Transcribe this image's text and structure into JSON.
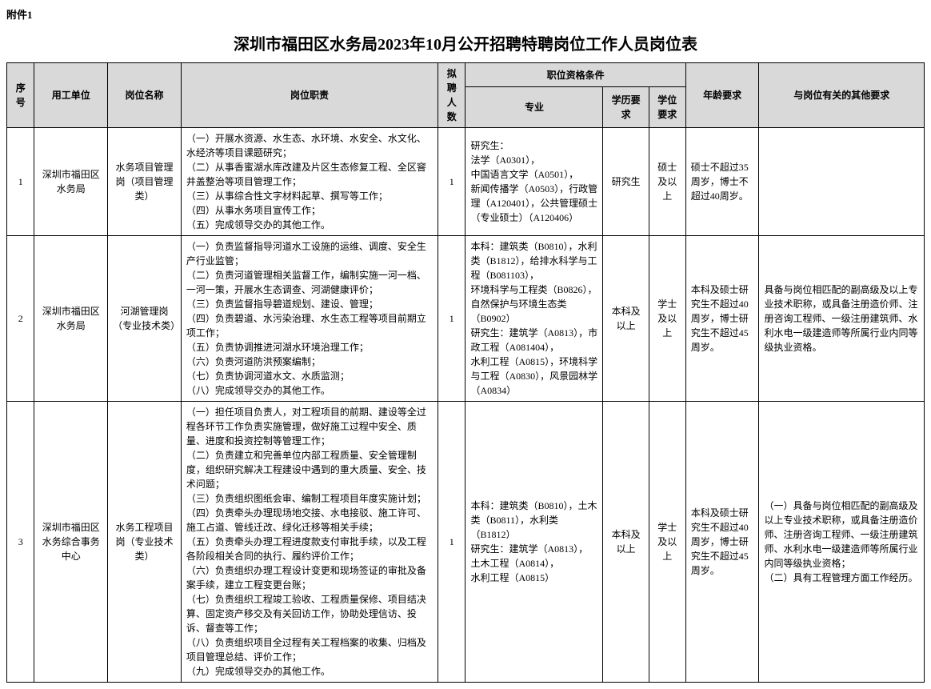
{
  "attachment_label": "附件1",
  "title": "深圳市福田区水务局2023年10月公开招聘特聘岗位工作人员岗位表",
  "headers": {
    "seq": "序号",
    "unit": "用工单位",
    "position": "岗位名称",
    "duty": "岗位职责",
    "count": "拟聘人数",
    "qualification_group": "职位资格条件",
    "major": "专业",
    "education": "学历要求",
    "degree": "学位要求",
    "age": "年龄要求",
    "other": "与岗位有关的其他要求"
  },
  "rows": [
    {
      "seq": "1",
      "unit": "深圳市福田区水务局",
      "position": "水务项目管理岗（项目管理类）",
      "duty": "（一）开展水资源、水生态、水环境、水安全、水文化、水经济等项目课题研究；\n（二）从事香蜜湖水库改建及片区生态修复工程、全区窨井盖整治等项目管理工作；\n（三）从事综合性文字材料起草、撰写等工作；\n（四）从事水务项目宣传工作；\n（五）完成领导交办的其他工作。",
      "count": "1",
      "major": "研究生：\n法学（A0301），\n中国语言文学（A0501），\n新闻传播学（A0503），行政管理（A120401），公共管理硕士（专业硕士）（A120406）",
      "education": "研究生",
      "degree": "硕士及以上",
      "age": "硕士不超过35周岁，博士不超过40周岁。",
      "other": ""
    },
    {
      "seq": "2",
      "unit": "深圳市福田区水务局",
      "position": "河湖管理岗（专业技术类）",
      "duty": "（一）负责监督指导河道水工设施的运维、调度、安全生产行业监管；\n（二）负责河道管理相关监督工作，编制实施一河一档、一河一策，开展水生态调查、河湖健康评价；\n（三）负责监督指导碧道规划、建设、管理；\n（四）负责碧道、水污染治理、水生态工程等项目前期立项工作；\n（五）负责协调推进河湖水环境治理工作；\n（六）负责河道防洪预案编制；\n（七）负责协调河道水文、水质监测；\n（八）完成领导交办的其他工作。",
      "count": "1",
      "major": "本科：建筑类（B0810），水利类（B1812），给排水科学与工程（B081103），\n环境科学与工程类（B0826），\n自然保护与环境生态类（B0902）\n研究生：建筑学（A0813），市政工程（A081404），\n水利工程（A0815），环境科学与工程（A0830），风景园林学（A0834）",
      "education": "本科及以上",
      "degree": "学士及以上",
      "age": "本科及硕士研究生不超过40周岁，博士研究生不超过45周岁。",
      "other": "具备与岗位相匹配的副高级及以上专业技术职称，或具备注册造价师、注册咨询工程师、一级注册建筑师、水利水电一级建造师等所属行业内同等级执业资格。"
    },
    {
      "seq": "3",
      "unit": "深圳市福田区水务综合事务中心",
      "position": "水务工程项目岗（专业技术类）",
      "duty": "（一）担任项目负责人，对工程项目的前期、建设等全过程各环节工作负责实施管理，做好施工过程中安全、质量、进度和投资控制等管理工作；\n（二）负责建立和完善单位内部工程质量、安全管理制度，组织研究解决工程建设中遇到的重大质量、安全、技术问题；\n（三）负责组织图纸会审、编制工程项目年度实施计划；\n（四）负责牵头办理现场地交接、水电接驳、施工许可、施工占道、管线迁改、绿化迁移等相关手续；\n（五）负责牵头办理工程进度款支付审批手续，以及工程各阶段相关合同的执行、履约评价工作；\n（六）负责组织办理工程设计变更和现场签证的审批及备案手续，建立工程变更台账；\n（七）负责组织工程竣工验收、工程质量保修、项目结决算、固定资产移交及有关回访工作，协助处理信访、投诉、督查等工作；\n（八）负责组织项目全过程有关工程档案的收集、归档及项目管理总结、评价工作；\n（九）完成领导交办的其他工作。",
      "count": "1",
      "major": "本科：建筑类（B0810），土木类（B0811），水利类（B1812）\n研究生：建筑学（A0813），\n土木工程（A0814），\n水利工程（A0815）",
      "education": "本科及以上",
      "degree": "学士及以上",
      "age": "本科及硕士研究生不超过40周岁，博士研究生不超过45周岁。",
      "other": "（一）具备与岗位相匹配的副高级及以上专业技术职称，或具备注册造价师、注册咨询工程师、一级注册建筑师、水利水电一级建造师等所属行业内同等级执业资格；\n（二）具有工程管理方面工作经历。"
    }
  ]
}
